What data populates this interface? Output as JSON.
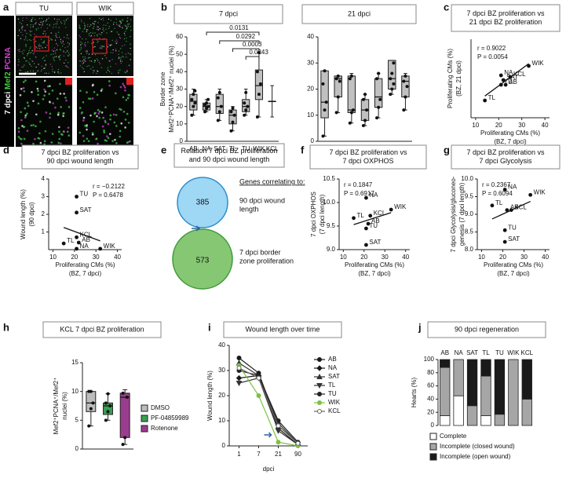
{
  "panel_labels": [
    "a",
    "b",
    "c",
    "d",
    "e",
    "f",
    "g",
    "h",
    "i",
    "j"
  ],
  "panel_a": {
    "columns": [
      "TU",
      "WIK"
    ],
    "side_label": [
      "7 dpci",
      "Mef2",
      "PCNA"
    ]
  },
  "panel_e": {
    "title": [
      "Relation 7 dpci BZ proliferation",
      "and 90 dpci wound length"
    ],
    "heading": "Genes correlating to:",
    "sets": [
      {
        "count": 385,
        "label": [
          "90 dpci wound",
          "length"
        ]
      },
      {
        "count": 573,
        "label": [
          "7 dpci border",
          "zone proliferation"
        ]
      }
    ]
  },
  "chart_data": [
    {
      "type": "box",
      "title": [
        "7 dpci"
      ],
      "ylabel": [
        "Border zone",
        "Mef2⁺PCNA⁺/Mef2⁺ nuclei (%)"
      ],
      "color": "#c0c0c0",
      "categories": [
        "AB",
        "NA",
        "SAT",
        "TL",
        "TU",
        "WIK",
        "KCL"
      ],
      "boxes": [
        {
          "min": 15,
          "q1": 18,
          "median": 23,
          "q3": 27,
          "max": 30,
          "points": [
            15,
            20,
            22,
            24,
            27,
            29
          ]
        },
        {
          "min": 17,
          "q1": 18,
          "median": 20,
          "q3": 22,
          "max": 24,
          "points": [
            17,
            19,
            20,
            21,
            22,
            24
          ]
        },
        {
          "min": 12,
          "q1": 16,
          "median": 20,
          "q3": 27,
          "max": 30,
          "points": [
            12,
            17,
            20,
            25,
            28
          ]
        },
        {
          "min": 6,
          "q1": 10,
          "median": 15,
          "q3": 18,
          "max": 20,
          "points": [
            6,
            11,
            15,
            17,
            19
          ]
        },
        {
          "min": 15,
          "q1": 17,
          "median": 20,
          "q3": 24,
          "max": 30,
          "points": [
            15,
            18,
            20,
            22,
            28
          ]
        },
        {
          "min": 14,
          "q1": 24,
          "median": 32,
          "q3": 41,
          "max": 51,
          "points": [
            14,
            27,
            33,
            40,
            51
          ]
        },
        {
          "min": 14,
          "q1": 23,
          "median": 23,
          "q3": 23,
          "max": 32,
          "points": []
        }
      ],
      "p_values": [
        "0.0131",
        "0.0292",
        "0.0003",
        "0.0243"
      ],
      "ylim": [
        0,
        60
      ],
      "yticks": [
        0,
        10,
        20,
        30,
        40,
        50,
        60
      ]
    },
    {
      "type": "box",
      "title": [
        "21 dpci"
      ],
      "color": "#c0c0c0",
      "categories": [
        "AB",
        "NA",
        "SAT",
        "TL",
        "TU",
        "WIK",
        "KCL"
      ],
      "boxes": [
        {
          "min": 2,
          "q1": 9,
          "median": 15,
          "q3": 27,
          "max": 27,
          "points": [
            2,
            12,
            15,
            22,
            27
          ]
        },
        {
          "min": 11,
          "q1": 17,
          "median": 24,
          "q3": 25,
          "max": 25,
          "points": [
            11,
            17,
            23,
            24,
            25
          ]
        },
        {
          "min": 7,
          "q1": 11,
          "median": 12,
          "q3": 25,
          "max": 26,
          "points": [
            7,
            11,
            12,
            24,
            25
          ]
        },
        {
          "min": 6,
          "q1": 8,
          "median": 12,
          "q3": 16,
          "max": 18,
          "points": [
            6,
            8,
            12,
            16,
            18
          ]
        },
        {
          "min": 9,
          "q1": 13,
          "median": 17,
          "q3": 24,
          "max": 26,
          "points": [
            9,
            13,
            16,
            24,
            26
          ]
        },
        {
          "min": 18,
          "q1": 20,
          "median": 24,
          "q3": 31,
          "max": 31,
          "points": [
            18,
            20,
            22,
            24,
            26,
            30
          ]
        },
        {
          "min": 12,
          "q1": 17,
          "median": 23,
          "q3": 25,
          "max": 26,
          "points": [
            12,
            17,
            21,
            23,
            25
          ]
        }
      ],
      "ylim": [
        0,
        40
      ],
      "yticks": [
        0,
        10,
        20,
        30,
        40
      ]
    },
    {
      "type": "scatter",
      "title": [
        "7 dpci BZ proliferation vs",
        "21 dpci BZ proliferation"
      ],
      "xlabel": [
        "Proliferating CMs (%)",
        "(BZ, 7 dpci)"
      ],
      "ylabel": [
        "Proliferating CMs (%)",
        "(BZ, 21 dpci)"
      ],
      "stats": [
        "r = 0.9022",
        "P = 0.0054"
      ],
      "points": [
        {
          "label": "TL",
          "x": 14,
          "y": 3.6
        },
        {
          "label": "NA",
          "x": 21,
          "y": 5.2
        },
        {
          "label": "SAT",
          "x": 22,
          "y": 4.9
        },
        {
          "label": "TU",
          "x": 21,
          "y": 4.6
        },
        {
          "label": "AB",
          "x": 23,
          "y": 4.6
        },
        {
          "label": "KCL",
          "x": 25,
          "y": 5.1
        },
        {
          "label": "WIK",
          "x": 33,
          "y": 5.8
        }
      ],
      "xlim": [
        8,
        42
      ],
      "xticks": [
        10,
        20,
        30,
        40
      ],
      "ylim": [
        2.5,
        7.5
      ]
    },
    {
      "type": "scatter",
      "title": [
        "7 dpci BZ proliferation vs",
        "90 dpci wound length"
      ],
      "xlabel": [
        "Proliferating CMs (%)",
        "(BZ, 7 dpci)"
      ],
      "ylabel": [
        "Wound length (%)",
        "(90 dpci)"
      ],
      "stats": [
        "r = −0.2122",
        "P = 0.6478"
      ],
      "points": [
        {
          "label": "TU",
          "x": 21,
          "y": 3
        },
        {
          "label": "SAT",
          "x": 21,
          "y": 2.1
        },
        {
          "label": "KCL",
          "x": 21,
          "y": 0.7
        },
        {
          "label": "AB",
          "x": 22,
          "y": 0.4
        },
        {
          "label": "TL",
          "x": 15,
          "y": 0.35
        },
        {
          "label": "NA",
          "x": 21,
          "y": 0.05
        },
        {
          "label": "WIK",
          "x": 32,
          "y": 0.05
        }
      ],
      "xlim": [
        8,
        42
      ],
      "xticks": [
        10,
        20,
        30,
        40
      ],
      "ylim": [
        0,
        4
      ],
      "yticks": [
        1,
        2,
        3,
        4
      ]
    },
    {
      "type": "scatter",
      "title": [
        "7 dpci BZ proliferation vs",
        "7 dpci OXPHOS"
      ],
      "xlabel": [
        "Proliferating CMs (%)",
        "(BZ, 7 dpci)"
      ],
      "ylabel": [
        "7 dpci OXPHOS",
        "(7 dpci length)"
      ],
      "stats": [
        "r = 0.1847",
        "P = 0.6917"
      ],
      "points": [
        {
          "label": "NA",
          "x": 21,
          "y": 10.1
        },
        {
          "label": "WIK",
          "x": 33,
          "y": 9.85
        },
        {
          "label": "TL",
          "x": 15,
          "y": 9.67
        },
        {
          "label": "KCL",
          "x": 23,
          "y": 9.72
        },
        {
          "label": "AB",
          "x": 22,
          "y": 9.55
        },
        {
          "label": "TU",
          "x": 21,
          "y": 9.45
        },
        {
          "label": "SAT",
          "x": 21,
          "y": 9.1
        }
      ],
      "xlim": [
        8,
        42
      ],
      "xticks": [
        10,
        20,
        30,
        40
      ],
      "ylim": [
        9.0,
        10.5
      ],
      "yticks": [
        {
          "value": 9,
          "label": "9.0"
        },
        9.5,
        {
          "value": 10,
          "label": "10.0"
        },
        10.5
      ]
    },
    {
      "type": "scatter",
      "title": [
        "7 dpci BZ proliferation vs",
        "7 dpci Glycolysis"
      ],
      "xlabel": [
        "Proliferating CMs (%)",
        "(BZ, 7 dpci)"
      ],
      "ylabel": [
        "7 dpci Glycolysis/gluconeo-",
        "genesis (7 dpci length)"
      ],
      "stats": [
        "r = 0.2367",
        "P = 0.6094"
      ],
      "points": [
        {
          "label": "NA",
          "x": 21,
          "y": 9.7
        },
        {
          "label": "WIK",
          "x": 33,
          "y": 9.55
        },
        {
          "label": "TL",
          "x": 15,
          "y": 9.25
        },
        {
          "label": "AB",
          "x": 22,
          "y": 9.12
        },
        {
          "label": "KCL",
          "x": 24,
          "y": 9.12
        },
        {
          "label": "TU",
          "x": 21,
          "y": 8.55
        },
        {
          "label": "SAT",
          "x": 21,
          "y": 8.22
        }
      ],
      "xlim": [
        8,
        42
      ],
      "xticks": [
        10,
        20,
        30,
        40
      ],
      "ylim": [
        8.0,
        10.0
      ],
      "yticks": [
        {
          "value": 8,
          "label": "8.0"
        },
        8.5,
        {
          "value": 9,
          "label": "9.0"
        },
        9.5,
        {
          "value": 10,
          "label": "10.0"
        }
      ]
    },
    {
      "type": "box",
      "title": [
        "KCL 7 dpci BZ proliferation"
      ],
      "ylabel": [
        "Mef2⁺PCNA⁺/Mef2⁺",
        "nuclei (%)"
      ],
      "boxes": [
        {
          "name": "DMSO",
          "color": "#bdbdbd",
          "min": 4,
          "q1": 6.5,
          "median": 8,
          "q3": 10,
          "max": 10,
          "points": [
            4,
            7,
            8,
            10,
            10
          ]
        },
        {
          "name": "PF-04859989",
          "color": "#3a9e52",
          "min": 5,
          "q1": 6,
          "median": 7.5,
          "q3": 8,
          "max": 9.6,
          "points": [
            5,
            6.5,
            7.5,
            8,
            9.6
          ]
        },
        {
          "name": "Rotenone",
          "color": "#9b3d8e",
          "min": 0.8,
          "q1": 2,
          "median": 9,
          "q3": 9.7,
          "max": 10.3,
          "points": [
            0.8,
            2,
            9,
            9.7
          ]
        }
      ],
      "ylim": [
        0,
        15
      ],
      "yticks": [
        0,
        5,
        10,
        15
      ]
    },
    {
      "type": "line",
      "title": [
        "Wound length over time"
      ],
      "xlabel": [
        "dpci"
      ],
      "ylabel": [
        "Wound length (%)"
      ],
      "categories": [
        "1",
        "7",
        "21",
        "90"
      ],
      "series": [
        {
          "name": "AB",
          "color": "#1a1a1a",
          "marker": "circle",
          "values": [
            35,
            29,
            8,
            1
          ]
        },
        {
          "name": "NA",
          "color": "#1a1a1a",
          "marker": "diamond",
          "values": [
            27,
            28,
            7,
            0.5
          ]
        },
        {
          "name": "SAT",
          "color": "#333333",
          "marker": "triangle",
          "values": [
            33,
            28,
            9,
            1
          ]
        },
        {
          "name": "TL",
          "color": "#333333",
          "marker": "triangle-down",
          "values": [
            25,
            27,
            6,
            0.5
          ]
        },
        {
          "name": "TU",
          "color": "#222222",
          "marker": "circle",
          "values": [
            30,
            28,
            10,
            1.5
          ]
        },
        {
          "name": "WIK",
          "color": "#7dc242",
          "marker": "circle",
          "values": [
            32,
            20,
            1.5,
            0
          ]
        },
        {
          "name": "KCL",
          "color": "#666666",
          "marker": "circle-open",
          "values": [
            31,
            27,
            8,
            1
          ]
        }
      ],
      "ylim": [
        0,
        40
      ],
      "yticks": [
        0,
        10,
        20,
        30,
        40
      ]
    },
    {
      "type": "stacked_bar",
      "title": [
        "90 dpci regeneration"
      ],
      "ylabel": [
        "Hearts (%)"
      ],
      "categories": [
        "AB",
        "NA",
        "SAT",
        "TL",
        "TU",
        "WIK",
        "KCL"
      ],
      "series": [
        {
          "name": "Complete",
          "color": "#ffffff",
          "values": [
            15,
            45,
            0,
            15,
            0,
            0,
            0
          ]
        },
        {
          "name": "Incomplete (closed wound)",
          "color": "#a6a6a6",
          "values": [
            73,
            55,
            30,
            60,
            17,
            100,
            40
          ]
        },
        {
          "name": "Incomplete (open wound)",
          "color": "#1a1a1a",
          "values": [
            12,
            0,
            70,
            25,
            83,
            0,
            60
          ]
        }
      ],
      "ylim": [
        0,
        100
      ],
      "yticks": [
        0,
        20,
        40,
        60,
        80,
        100
      ]
    }
  ]
}
